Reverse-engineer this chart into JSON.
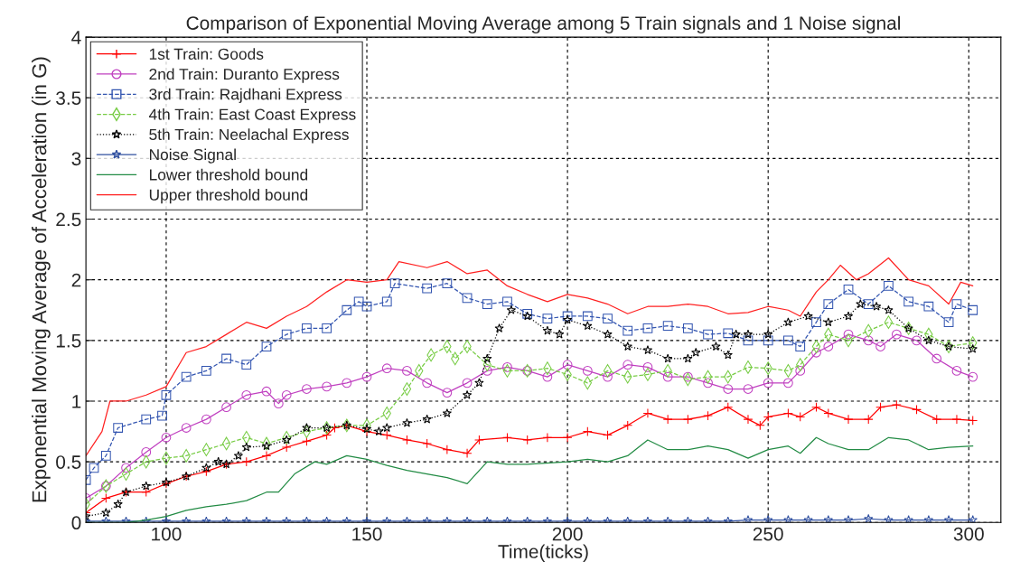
{
  "chart_data": {
    "type": "line",
    "title": "Comparison of Exponential Moving Average among 5 Train signals and 1 Noise signal",
    "xlabel": "Time(ticks)",
    "ylabel": "Exponential Moving Average of Acceleration (in G)",
    "xlim": [
      80,
      308
    ],
    "xticks": [
      100,
      150,
      200,
      250,
      300
    ],
    "ylim": [
      0,
      4
    ],
    "yticks": [
      0,
      0.5,
      1,
      1.5,
      2,
      2.5,
      3,
      3.5,
      4
    ],
    "grid": true,
    "legend": "top left",
    "series": [
      {
        "name": "1st Train: Goods",
        "color": "#ff0000",
        "marker": "cross",
        "line_style": "solid",
        "x": [
          80,
          85,
          90,
          95,
          100,
          105,
          110,
          115,
          120,
          125,
          130,
          135,
          140,
          142,
          145,
          150,
          155,
          160,
          165,
          170,
          175,
          178,
          185,
          190,
          195,
          200,
          205,
          210,
          215,
          220,
          225,
          230,
          235,
          240,
          245,
          248,
          250,
          255,
          258,
          262,
          265,
          270,
          275,
          278,
          282,
          287,
          292,
          297,
          301
        ],
        "values": [
          0.08,
          0.2,
          0.25,
          0.25,
          0.32,
          0.38,
          0.42,
          0.48,
          0.5,
          0.55,
          0.62,
          0.67,
          0.72,
          0.78,
          0.8,
          0.75,
          0.72,
          0.68,
          0.65,
          0.6,
          0.57,
          0.68,
          0.7,
          0.68,
          0.7,
          0.7,
          0.75,
          0.72,
          0.8,
          0.9,
          0.85,
          0.85,
          0.88,
          0.95,
          0.85,
          0.8,
          0.87,
          0.9,
          0.87,
          0.95,
          0.9,
          0.85,
          0.85,
          0.95,
          0.97,
          0.93,
          0.85,
          0.85,
          0.84
        ]
      },
      {
        "name": "2nd Train: Duranto Express",
        "color": "#c040c0",
        "marker": "circle",
        "line_style": "solid",
        "x": [
          80,
          85,
          90,
          95,
          100,
          105,
          110,
          115,
          120,
          125,
          128,
          130,
          135,
          140,
          145,
          150,
          155,
          160,
          165,
          170,
          175,
          180,
          185,
          190,
          195,
          200,
          205,
          210,
          215,
          220,
          225,
          230,
          235,
          240,
          245,
          250,
          255,
          258,
          262,
          265,
          270,
          275,
          278,
          282,
          287,
          292,
          297,
          301
        ],
        "values": [
          0.2,
          0.3,
          0.45,
          0.58,
          0.7,
          0.78,
          0.85,
          0.95,
          1.05,
          1.08,
          0.98,
          1.05,
          1.1,
          1.12,
          1.15,
          1.2,
          1.27,
          1.25,
          1.15,
          1.07,
          1.15,
          1.25,
          1.28,
          1.25,
          1.2,
          1.3,
          1.25,
          1.2,
          1.3,
          1.28,
          1.2,
          1.2,
          1.15,
          1.1,
          1.1,
          1.15,
          1.15,
          1.25,
          1.4,
          1.45,
          1.55,
          1.5,
          1.45,
          1.55,
          1.5,
          1.35,
          1.25,
          1.2
        ]
      },
      {
        "name": "3rd Train: Rajdhani Express",
        "color": "#3355b0",
        "marker": "square",
        "line_style": "dashed",
        "x": [
          80,
          82,
          85,
          88,
          95,
          99,
          100,
          105,
          110,
          115,
          120,
          125,
          130,
          135,
          140,
          145,
          148,
          150,
          155,
          157,
          165,
          170,
          175,
          180,
          185,
          190,
          195,
          200,
          205,
          210,
          215,
          220,
          225,
          230,
          235,
          240,
          245,
          250,
          255,
          258,
          262,
          265,
          270,
          275,
          280,
          285,
          290,
          295,
          297,
          301
        ],
        "values": [
          0.35,
          0.45,
          0.55,
          0.78,
          0.85,
          0.88,
          1.05,
          1.2,
          1.25,
          1.35,
          1.3,
          1.45,
          1.55,
          1.6,
          1.6,
          1.75,
          1.82,
          1.78,
          1.82,
          1.97,
          1.93,
          1.97,
          1.85,
          1.8,
          1.82,
          1.72,
          1.68,
          1.7,
          1.7,
          1.68,
          1.58,
          1.6,
          1.62,
          1.6,
          1.55,
          1.56,
          1.5,
          1.5,
          1.5,
          1.45,
          1.65,
          1.8,
          1.92,
          1.8,
          1.95,
          1.82,
          1.78,
          1.65,
          1.8,
          1.75
        ]
      },
      {
        "name": "4th Train: East Coast Express",
        "color": "#77cc44",
        "marker": "diamond",
        "line_style": "dashed",
        "x": [
          80,
          85,
          90,
          95,
          100,
          105,
          110,
          115,
          120,
          125,
          130,
          135,
          140,
          145,
          150,
          155,
          160,
          163,
          166,
          170,
          172,
          175,
          180,
          185,
          190,
          195,
          200,
          205,
          210,
          215,
          220,
          225,
          230,
          235,
          240,
          245,
          250,
          255,
          258,
          262,
          265,
          270,
          275,
          280,
          285,
          290,
          295,
          301
        ],
        "values": [
          0.15,
          0.3,
          0.4,
          0.5,
          0.53,
          0.55,
          0.6,
          0.65,
          0.7,
          0.65,
          0.7,
          0.75,
          0.78,
          0.8,
          0.8,
          0.9,
          1.1,
          1.25,
          1.38,
          1.45,
          1.35,
          1.45,
          1.3,
          1.25,
          1.25,
          1.27,
          1.22,
          1.15,
          1.25,
          1.2,
          1.22,
          1.25,
          1.18,
          1.2,
          1.2,
          1.28,
          1.27,
          1.25,
          1.3,
          1.45,
          1.55,
          1.5,
          1.58,
          1.65,
          1.6,
          1.55,
          1.45,
          1.48
        ]
      },
      {
        "name": "5th Train: Neelachal Express",
        "color": "#000000",
        "marker": "star",
        "line_style": "dotted",
        "x": [
          80,
          85,
          88,
          90,
          95,
          100,
          105,
          110,
          113,
          115,
          118,
          120,
          125,
          130,
          135,
          140,
          145,
          150,
          153,
          155,
          160,
          165,
          170,
          175,
          178,
          180,
          183,
          186,
          190,
          195,
          198,
          200,
          205,
          210,
          215,
          220,
          225,
          230,
          232,
          237,
          240,
          242,
          245,
          250,
          255,
          260,
          265,
          270,
          273,
          277,
          280,
          285,
          290,
          295,
          301
        ],
        "values": [
          0.05,
          0.08,
          0.15,
          0.25,
          0.3,
          0.33,
          0.38,
          0.45,
          0.5,
          0.48,
          0.55,
          0.62,
          0.63,
          0.68,
          0.78,
          0.78,
          0.8,
          0.77,
          0.75,
          0.78,
          0.82,
          0.85,
          0.9,
          1.05,
          1.15,
          1.35,
          1.6,
          1.75,
          1.7,
          1.58,
          1.55,
          1.67,
          1.62,
          1.55,
          1.45,
          1.42,
          1.35,
          1.35,
          1.4,
          1.45,
          1.38,
          1.55,
          1.55,
          1.55,
          1.65,
          1.7,
          1.65,
          1.7,
          1.8,
          1.78,
          1.75,
          1.6,
          1.5,
          1.45,
          1.43
        ]
      },
      {
        "name": "Noise Signal",
        "color": "#3050a0",
        "marker": "star",
        "line_style": "solid",
        "x": [
          80,
          85,
          90,
          95,
          100,
          105,
          110,
          115,
          120,
          125,
          130,
          135,
          140,
          145,
          150,
          155,
          160,
          165,
          170,
          175,
          180,
          185,
          190,
          195,
          200,
          205,
          210,
          215,
          220,
          225,
          230,
          235,
          240,
          245,
          250,
          255,
          260,
          265,
          270,
          275,
          280,
          285,
          290,
          295,
          301
        ],
        "values": [
          0.01,
          0.01,
          0.01,
          0.01,
          0.01,
          0.01,
          0.01,
          0.01,
          0.01,
          0.01,
          0.01,
          0.01,
          0.01,
          0.01,
          0.01,
          0.01,
          0.01,
          0.01,
          0.01,
          0.01,
          0.01,
          0.01,
          0.01,
          0.01,
          0.01,
          0.01,
          0.01,
          0.01,
          0.01,
          0.01,
          0.01,
          0.01,
          0.01,
          0.02,
          0.02,
          0.02,
          0.02,
          0.02,
          0.02,
          0.03,
          0.02,
          0.02,
          0.02,
          0.02,
          0.02
        ]
      },
      {
        "name": "Lower threshold bound",
        "color": "#228b44",
        "marker": "none",
        "line_style": "solid",
        "x": [
          80,
          90,
          95,
          100,
          105,
          110,
          115,
          120,
          125,
          128,
          132,
          137,
          140,
          145,
          150,
          155,
          160,
          165,
          170,
          175,
          180,
          185,
          190,
          200,
          205,
          210,
          215,
          220,
          225,
          230,
          235,
          240,
          245,
          250,
          255,
          258,
          262,
          265,
          270,
          275,
          280,
          285,
          290,
          295,
          301
        ],
        "values": [
          0,
          0,
          0.02,
          0.05,
          0.1,
          0.13,
          0.15,
          0.18,
          0.25,
          0.25,
          0.4,
          0.5,
          0.48,
          0.55,
          0.52,
          0.47,
          0.43,
          0.4,
          0.37,
          0.32,
          0.5,
          0.48,
          0.48,
          0.5,
          0.52,
          0.5,
          0.55,
          0.68,
          0.6,
          0.6,
          0.63,
          0.6,
          0.53,
          0.6,
          0.63,
          0.57,
          0.7,
          0.65,
          0.6,
          0.6,
          0.7,
          0.68,
          0.6,
          0.62,
          0.63
        ]
      },
      {
        "name": "Upper threshold bound",
        "color": "#ff2020",
        "marker": "none",
        "line_style": "solid",
        "x": [
          80,
          84,
          86,
          90,
          95,
          100,
          105,
          110,
          115,
          120,
          125,
          130,
          135,
          140,
          145,
          150,
          155,
          158,
          165,
          170,
          175,
          180,
          185,
          190,
          195,
          200,
          205,
          210,
          215,
          220,
          225,
          230,
          235,
          240,
          245,
          250,
          255,
          258,
          262,
          265,
          268,
          272,
          275,
          280,
          285,
          290,
          295,
          298,
          301
        ],
        "values": [
          0.55,
          0.75,
          1.0,
          1.0,
          1.05,
          1.12,
          1.4,
          1.45,
          1.55,
          1.65,
          1.6,
          1.7,
          1.78,
          1.9,
          2.0,
          1.98,
          2.0,
          2.15,
          2.1,
          2.15,
          2.05,
          2.08,
          1.95,
          1.88,
          1.82,
          1.88,
          1.85,
          1.8,
          1.72,
          1.78,
          1.78,
          1.8,
          1.78,
          1.72,
          1.73,
          1.78,
          1.75,
          1.7,
          1.9,
          2.0,
          2.12,
          2.0,
          2.05,
          2.18,
          2.0,
          1.95,
          1.8,
          1.98,
          1.95
        ]
      }
    ]
  }
}
